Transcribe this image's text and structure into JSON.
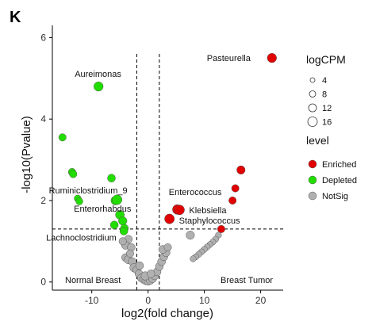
{
  "panel_label": "K",
  "chart_data": {
    "type": "scatter",
    "title": "",
    "xlabel": "log2(fold change)",
    "ylabel": "-log10(Pvalue)",
    "xlim": [
      -17,
      24
    ],
    "ylim": [
      -0.2,
      6.3
    ],
    "xticks": [
      -10,
      0,
      10,
      20
    ],
    "yticks": [
      0,
      2,
      4,
      6
    ],
    "grid": false,
    "thresholds": {
      "fold_change_lines": [
        -2,
        2
      ],
      "pvalue_line": 1.3
    },
    "corner_labels": {
      "left": "Normal Breast",
      "right": "Breast Tumor"
    },
    "colors": {
      "Enriched": "#e00000",
      "Depleted": "#22dd00",
      "NotSig": "#b0b0b0"
    },
    "legend_position": "right",
    "size_legend": {
      "title": "logCPM",
      "values": [
        4,
        8,
        12,
        16
      ]
    },
    "color_legend": {
      "title": "level",
      "items": [
        "Enriched",
        "Depleted",
        "NotSig"
      ]
    },
    "points": [
      {
        "x": 22,
        "y": 5.5,
        "level": "Enriched",
        "logCPM": 12,
        "label": "Pasteurella"
      },
      {
        "x": 16.5,
        "y": 2.75,
        "level": "Enriched",
        "logCPM": 10
      },
      {
        "x": 15.5,
        "y": 2.3,
        "level": "Enriched",
        "logCPM": 8
      },
      {
        "x": 15,
        "y": 2.0,
        "level": "Enriched",
        "logCPM": 8
      },
      {
        "x": 13,
        "y": 1.3,
        "level": "Enriched",
        "logCPM": 8
      },
      {
        "x": 5.2,
        "y": 1.78,
        "level": "Enriched",
        "logCPM": 13
      },
      {
        "x": 5.6,
        "y": 1.77,
        "level": "Enriched",
        "logCPM": 13,
        "label": "Klebsiella"
      },
      {
        "x": 3.8,
        "y": 1.55,
        "level": "Enriched",
        "logCPM": 13,
        "label": "Staphylococcus"
      },
      {
        "x": -8.8,
        "y": 4.8,
        "level": "Depleted",
        "logCPM": 12,
        "label": "Aureimonas"
      },
      {
        "x": -15.2,
        "y": 3.55,
        "level": "Depleted",
        "logCPM": 8
      },
      {
        "x": -13.5,
        "y": 2.7,
        "level": "Depleted",
        "logCPM": 8
      },
      {
        "x": -13.3,
        "y": 2.65,
        "level": "Depleted",
        "logCPM": 8
      },
      {
        "x": -12.5,
        "y": 2.05,
        "level": "Depleted",
        "logCPM": 7
      },
      {
        "x": -12.2,
        "y": 1.98,
        "level": "Depleted",
        "logCPM": 7
      },
      {
        "x": -6.5,
        "y": 2.55,
        "level": "Depleted",
        "logCPM": 9
      },
      {
        "x": -5.8,
        "y": 2.0,
        "level": "Depleted",
        "logCPM": 11
      },
      {
        "x": -5.5,
        "y": 2.02,
        "level": "Depleted",
        "logCPM": 13,
        "label": "Ruminiclostridium_9"
      },
      {
        "x": -5.0,
        "y": 1.65,
        "level": "Depleted",
        "logCPM": 11,
        "label": "Enterorhabdus"
      },
      {
        "x": -4.5,
        "y": 1.5,
        "level": "Depleted",
        "logCPM": 10
      },
      {
        "x": -4.2,
        "y": 1.32,
        "level": "Depleted",
        "logCPM": 9
      },
      {
        "x": -6.0,
        "y": 1.4,
        "level": "Depleted",
        "logCPM": 9
      },
      {
        "x": -4.3,
        "y": 1.25,
        "level": "Depleted",
        "logCPM": 9,
        "label": "Lachnoclostridium"
      },
      {
        "x": 6.5,
        "y": 2.1,
        "level": "Enriched",
        "logCPM": 0,
        "label": "Enterococcus"
      },
      {
        "x": 7.5,
        "y": 1.15,
        "level": "NotSig",
        "logCPM": 10
      },
      {
        "x": 12.5,
        "y": 1.15,
        "level": "NotSig",
        "logCPM": 5
      },
      {
        "x": 12.0,
        "y": 1.05,
        "level": "NotSig",
        "logCPM": 5
      },
      {
        "x": 11.5,
        "y": 0.98,
        "level": "NotSig",
        "logCPM": 5
      },
      {
        "x": 11.0,
        "y": 0.92,
        "level": "NotSig",
        "logCPM": 5
      },
      {
        "x": 10.5,
        "y": 0.86,
        "level": "NotSig",
        "logCPM": 5
      },
      {
        "x": 10.0,
        "y": 0.8,
        "level": "NotSig",
        "logCPM": 5
      },
      {
        "x": 9.5,
        "y": 0.74,
        "level": "NotSig",
        "logCPM": 5
      },
      {
        "x": 9.0,
        "y": 0.68,
        "level": "NotSig",
        "logCPM": 5
      },
      {
        "x": 8.5,
        "y": 0.62,
        "level": "NotSig",
        "logCPM": 5
      },
      {
        "x": 8.0,
        "y": 0.57,
        "level": "NotSig",
        "logCPM": 5
      },
      {
        "x": -3.5,
        "y": 1.05,
        "level": "NotSig",
        "logCPM": 9
      },
      {
        "x": -4.0,
        "y": 0.9,
        "level": "NotSig",
        "logCPM": 9
      },
      {
        "x": -4.5,
        "y": 1.0,
        "level": "NotSig",
        "logCPM": 8
      },
      {
        "x": -3.0,
        "y": 0.85,
        "level": "NotSig",
        "logCPM": 9
      },
      {
        "x": -4.0,
        "y": 0.6,
        "level": "NotSig",
        "logCPM": 9
      },
      {
        "x": -3.5,
        "y": 0.55,
        "level": "NotSig",
        "logCPM": 10
      },
      {
        "x": -2.8,
        "y": 0.5,
        "level": "NotSig",
        "logCPM": 9
      },
      {
        "x": -2.5,
        "y": 0.35,
        "level": "NotSig",
        "logCPM": 10
      },
      {
        "x": -2.0,
        "y": 0.3,
        "level": "NotSig",
        "logCPM": 9
      },
      {
        "x": -1.6,
        "y": 0.2,
        "level": "NotSig",
        "logCPM": 9
      },
      {
        "x": -1.2,
        "y": 0.1,
        "level": "NotSig",
        "logCPM": 9
      },
      {
        "x": -0.8,
        "y": 0.06,
        "level": "NotSig",
        "logCPM": 9
      },
      {
        "x": -0.4,
        "y": 0.03,
        "level": "NotSig",
        "logCPM": 9
      },
      {
        "x": 0.0,
        "y": 0.02,
        "level": "NotSig",
        "logCPM": 9
      },
      {
        "x": 0.4,
        "y": 0.04,
        "level": "NotSig",
        "logCPM": 9
      },
      {
        "x": 0.8,
        "y": 0.08,
        "level": "NotSig",
        "logCPM": 9
      },
      {
        "x": 1.2,
        "y": 0.15,
        "level": "NotSig",
        "logCPM": 9
      },
      {
        "x": 1.6,
        "y": 0.25,
        "level": "NotSig",
        "logCPM": 9
      },
      {
        "x": 2.0,
        "y": 0.38,
        "level": "NotSig",
        "logCPM": 9
      },
      {
        "x": 2.4,
        "y": 0.5,
        "level": "NotSig",
        "logCPM": 9
      },
      {
        "x": 2.8,
        "y": 0.62,
        "level": "NotSig",
        "logCPM": 9
      },
      {
        "x": 3.2,
        "y": 0.72,
        "level": "NotSig",
        "logCPM": 9
      },
      {
        "x": 2.6,
        "y": 0.8,
        "level": "NotSig",
        "logCPM": 9
      },
      {
        "x": 3.5,
        "y": 0.85,
        "level": "NotSig",
        "logCPM": 8
      },
      {
        "x": -1.5,
        "y": 0.4,
        "level": "NotSig",
        "logCPM": 9
      },
      {
        "x": -0.5,
        "y": 0.15,
        "level": "NotSig",
        "logCPM": 10
      },
      {
        "x": 0.5,
        "y": 0.2,
        "level": "NotSig",
        "logCPM": 9
      },
      {
        "x": -3.2,
        "y": 0.7,
        "level": "NotSig",
        "logCPM": 8
      }
    ]
  }
}
